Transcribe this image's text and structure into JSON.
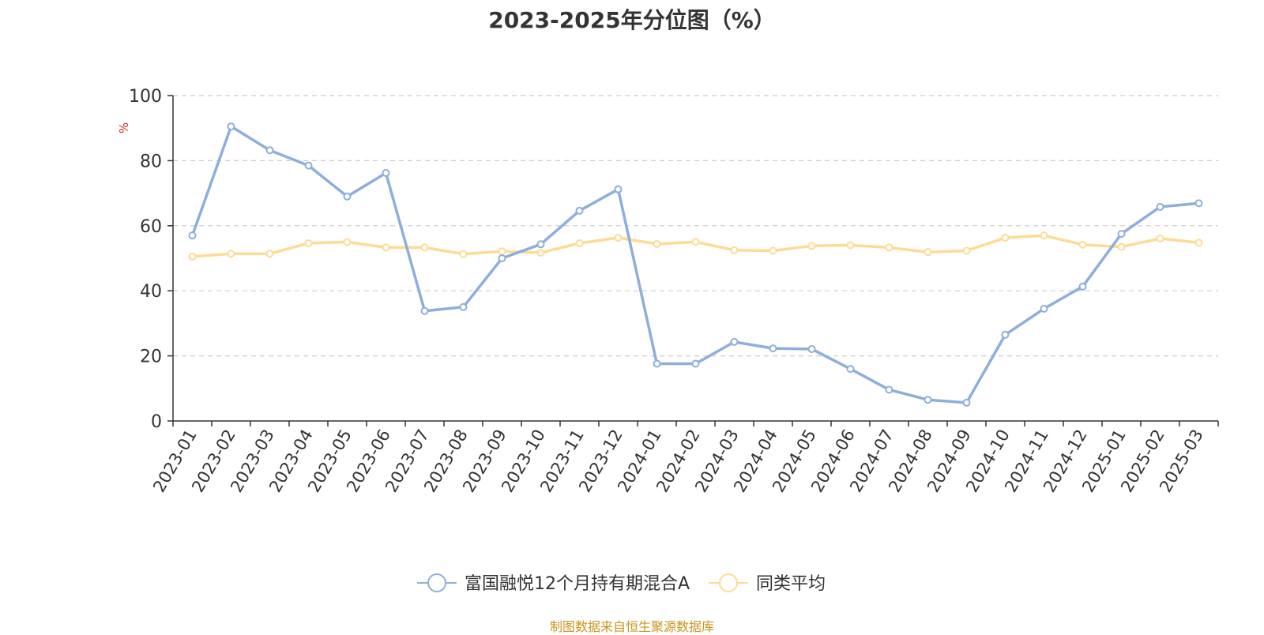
{
  "chart_data": {
    "type": "line",
    "title": "2023-2025年分位图（%）",
    "ylabel": "%",
    "ylim": [
      0,
      100
    ],
    "yticks": [
      0,
      20,
      40,
      60,
      80,
      100
    ],
    "grid": true,
    "legend_position": "bottom-center",
    "categories": [
      "2023-01",
      "2023-02",
      "2023-03",
      "2023-04",
      "2023-05",
      "2023-06",
      "2023-07",
      "2023-08",
      "2023-09",
      "2023-10",
      "2023-11",
      "2023-12",
      "2024-01",
      "2024-02",
      "2024-03",
      "2024-04",
      "2024-05",
      "2024-06",
      "2024-07",
      "2024-08",
      "2024-09",
      "2024-10",
      "2024-11",
      "2024-12",
      "2025-01",
      "2025-02",
      "2025-03"
    ],
    "series": [
      {
        "name": "富国融悦12个月持有期混合A",
        "color": "#8eaedb",
        "values": [
          57.0,
          90.5,
          83.2,
          78.5,
          69.0,
          76.2,
          33.8,
          35.0,
          50.0,
          54.3,
          64.6,
          71.2,
          17.6,
          17.6,
          24.3,
          22.3,
          22.1,
          16.0,
          9.6,
          6.5,
          5.6,
          26.5,
          34.5,
          41.3,
          57.5,
          65.8,
          66.9
        ]
      },
      {
        "name": "同类平均",
        "color": "#fddb95",
        "values": [
          50.5,
          51.4,
          51.4,
          54.6,
          55.0,
          53.3,
          53.3,
          51.3,
          52.1,
          51.7,
          54.6,
          56.3,
          54.4,
          55.0,
          52.5,
          52.3,
          53.8,
          54.0,
          53.3,
          51.9,
          52.3,
          56.3,
          57.0,
          54.2,
          53.5,
          56.1,
          54.8
        ]
      }
    ]
  },
  "source_note": "制图数据来自恒生聚源数据库"
}
